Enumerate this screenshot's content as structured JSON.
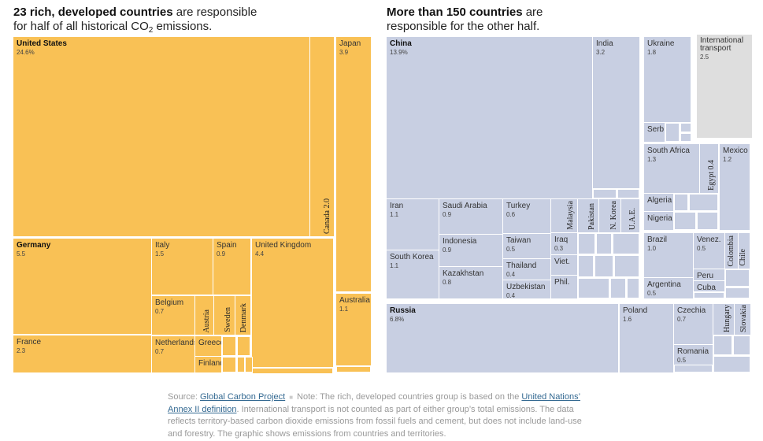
{
  "left_heading": {
    "bold": "23 rich, developed countries",
    "rest": " are responsible",
    "line2_pre": "for half of all historical CO",
    "sub": "2",
    "line2_post": " emissions."
  },
  "right_heading": {
    "bold": "More than 150 countries",
    "rest": " are",
    "line2": "responsible for the other half."
  },
  "colors": {
    "developed": "#f9c155",
    "other": "#c8cfe2",
    "transport": "#dedede",
    "link": "#326891"
  },
  "chart_data": {
    "type": "treemap",
    "unit": "% of historical CO2 emissions",
    "groups": [
      {
        "name": "developed",
        "cells": [
          {
            "label": "United States",
            "value": "24.6%",
            "bold": true
          },
          {
            "label": "Canada",
            "value": "2.0",
            "vertical": true
          },
          {
            "label": "Japan",
            "value": "3.9"
          },
          {
            "label": "Australia",
            "value": "1.1"
          },
          {
            "label": "Germany",
            "value": "5.5",
            "bold": true
          },
          {
            "label": "France",
            "value": "2.3"
          },
          {
            "label": "Italy",
            "value": "1.5"
          },
          {
            "label": "Spain",
            "value": "0.9"
          },
          {
            "label": "United Kingdom",
            "value": "4.4"
          },
          {
            "label": "Belgium",
            "value": "0.7"
          },
          {
            "label": "Austria",
            "vertical": true
          },
          {
            "label": "Sweden",
            "vertical": true
          },
          {
            "label": "Denmark",
            "vertical": true
          },
          {
            "label": "Netherlands",
            "value": "0.7"
          },
          {
            "label": "Greece"
          },
          {
            "label": "Finland"
          }
        ]
      },
      {
        "name": "other",
        "cells": [
          {
            "label": "China",
            "value": "13.9%",
            "bold": true
          },
          {
            "label": "India",
            "value": "3.2"
          },
          {
            "label": "Ukraine",
            "value": "1.8"
          },
          {
            "label": "Serb."
          },
          {
            "label": "International transport",
            "value": "2.5",
            "transport": true
          },
          {
            "label": "South Africa",
            "value": "1.3"
          },
          {
            "label": "Egypt",
            "value": "0.4",
            "vertical": true
          },
          {
            "label": "Mexico",
            "value": "1.2"
          },
          {
            "label": "Algeria"
          },
          {
            "label": "Nigeria"
          },
          {
            "label": "Iran",
            "value": "1.1"
          },
          {
            "label": "South Korea",
            "value": "1.1"
          },
          {
            "label": "Saudi Arabia",
            "value": "0.9"
          },
          {
            "label": "Indonesia",
            "value": "0.9"
          },
          {
            "label": "Kazakhstan",
            "value": "0.8"
          },
          {
            "label": "Turkey",
            "value": "0.6"
          },
          {
            "label": "Taiwan",
            "value": "0.5"
          },
          {
            "label": "Thailand",
            "value": "0.4"
          },
          {
            "label": "Uzbekistan",
            "value": "0.4"
          },
          {
            "label": "Malaysia",
            "vertical": true
          },
          {
            "label": "Pakistan",
            "vertical": true
          },
          {
            "label": "N. Korea",
            "vertical": true
          },
          {
            "label": "U.A.E.",
            "vertical": true
          },
          {
            "label": "Iraq",
            "value": "0.3"
          },
          {
            "label": "Viet."
          },
          {
            "label": "Phil."
          },
          {
            "label": "Brazil",
            "value": "1.0"
          },
          {
            "label": "Argentina",
            "value": "0.5"
          },
          {
            "label": "Venez.",
            "value": "0.5"
          },
          {
            "label": "Peru"
          },
          {
            "label": "Cuba"
          },
          {
            "label": "Colombia",
            "vertical": true
          },
          {
            "label": "Chile",
            "vertical": true
          },
          {
            "label": "Russia",
            "value": "6.8%",
            "bold": true
          },
          {
            "label": "Poland",
            "value": "1.6"
          },
          {
            "label": "Czechia",
            "value": "0.7"
          },
          {
            "label": "Romania",
            "value": "0.5"
          },
          {
            "label": "Hungary",
            "vertical": true
          },
          {
            "label": "Slovakia",
            "vertical": true
          }
        ]
      }
    ]
  },
  "footer": {
    "source_label": "Source: ",
    "source_link": "Global Carbon Project",
    "note_pre": "Note: The rich, developed countries group is based on the ",
    "note_link": "United Nations’ Annex II definition",
    "note_post": ". International transport is not counted as part of either group’s total emissions. The data reflects territory-based carbon dioxide emissions from fossil fuels and cement, but does not include land-use and forestry. The graphic shows emissions from countries and territories."
  }
}
